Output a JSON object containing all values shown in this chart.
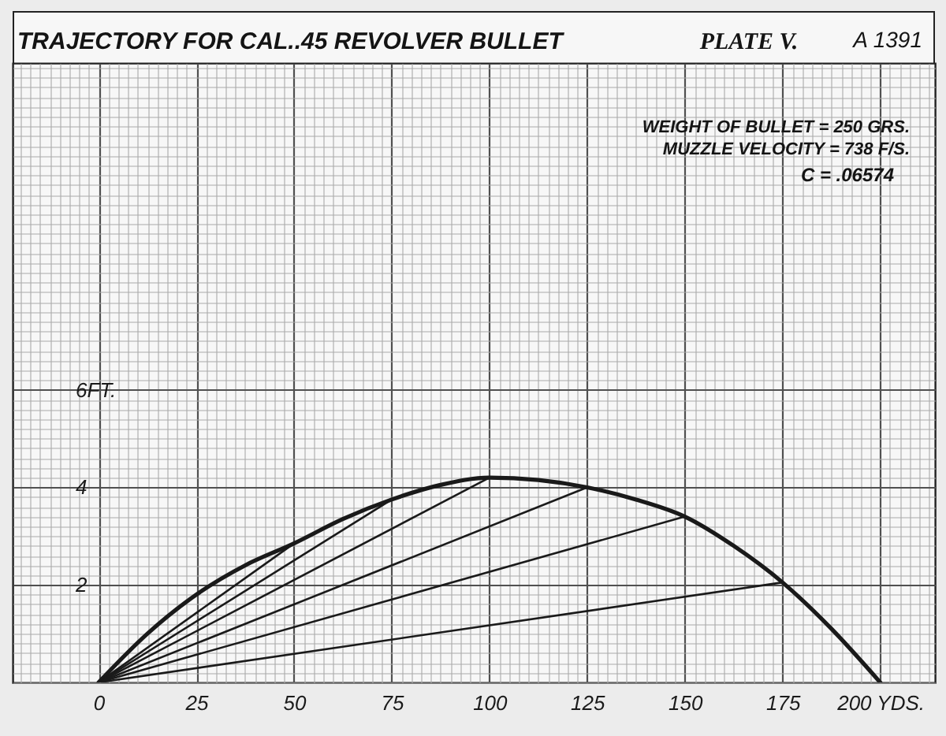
{
  "chart_data": {
    "type": "line",
    "title": "TRAJECTORY FOR CAL..45 REVOLVER BULLET",
    "annotations": [
      "PLATE V.",
      "A 1391",
      "WEIGHT OF BULLET = 250 GRS.",
      "MUZZLE VELOCITY = 738 F/S.",
      "C = .06574"
    ],
    "series": [
      {
        "color": "#1a1a1a",
        "x": [
          0,
          12.5,
          25,
          37.5,
          50,
          62.5,
          75,
          87.5,
          100,
          112.5,
          125,
          137.5,
          150,
          162.5,
          175,
          187.5,
          200
        ],
        "values": [
          0,
          1.0,
          1.8,
          2.4,
          2.85,
          3.35,
          3.75,
          4.05,
          4.2,
          4.15,
          4.0,
          3.75,
          3.4,
          2.8,
          2.05,
          1.1,
          0
        ]
      },
      {
        "color": "#1a1a1a",
        "x": [
          0,
          50
        ],
        "values": [
          0,
          2.85
        ]
      },
      {
        "color": "#1a1a1a",
        "x": [
          0,
          75
        ],
        "values": [
          0,
          3.75
        ]
      },
      {
        "color": "#1a1a1a",
        "x": [
          0,
          100
        ],
        "values": [
          0,
          4.2
        ]
      },
      {
        "color": "#1a1a1a",
        "x": [
          0,
          125
        ],
        "values": [
          0,
          4.0
        ]
      },
      {
        "color": "#1a1a1a",
        "x": [
          0,
          150
        ],
        "values": [
          0,
          3.4
        ]
      },
      {
        "color": "#1a1a1a",
        "x": [
          0,
          175
        ],
        "values": [
          0,
          2.05
        ]
      }
    ],
    "xlim": [
      -22,
      214
    ],
    "xticks": [
      {
        "value": -20,
        "label": null
      },
      {
        "value": -17.5,
        "label": null
      },
      {
        "value": -15,
        "label": null
      },
      {
        "value": -12.5,
        "label": null
      },
      {
        "value": -10,
        "label": null
      },
      {
        "value": -7.5,
        "label": null
      },
      {
        "value": -5,
        "label": null
      },
      {
        "value": -2.5,
        "label": null
      },
      0,
      {
        "value": 2.5,
        "label": null
      },
      {
        "value": 5,
        "label": null
      },
      {
        "value": 7.5,
        "label": null
      },
      {
        "value": 10,
        "label": null
      },
      {
        "value": 12.5,
        "label": null
      },
      {
        "value": 15,
        "label": null
      },
      {
        "value": 17.5,
        "label": null
      },
      {
        "value": 20,
        "label": null
      },
      {
        "value": 22.5,
        "label": null
      },
      25,
      {
        "value": 27.5,
        "label": null
      },
      {
        "value": 30,
        "label": null
      },
      {
        "value": 32.5,
        "label": null
      },
      {
        "value": 35,
        "label": null
      },
      {
        "value": 37.5,
        "label": null
      },
      {
        "value": 40,
        "label": null
      },
      {
        "value": 42.5,
        "label": null
      },
      {
        "value": 45,
        "label": null
      },
      {
        "value": 47.5,
        "label": null
      },
      50,
      {
        "value": 52.5,
        "label": null
      },
      {
        "value": 55,
        "label": null
      },
      {
        "value": 57.5,
        "label": null
      },
      {
        "value": 60,
        "label": null
      },
      {
        "value": 62.5,
        "label": null
      },
      {
        "value": 65,
        "label": null
      },
      {
        "value": 67.5,
        "label": null
      },
      {
        "value": 70,
        "label": null
      },
      {
        "value": 72.5,
        "label": null
      },
      75,
      {
        "value": 77.5,
        "label": null
      },
      {
        "value": 80,
        "label": null
      },
      {
        "value": 82.5,
        "label": null
      },
      {
        "value": 85,
        "label": null
      },
      {
        "value": 87.5,
        "label": null
      },
      {
        "value": 90,
        "label": null
      },
      {
        "value": 92.5,
        "label": null
      },
      {
        "value": 95,
        "label": null
      },
      {
        "value": 97.5,
        "label": null
      },
      100,
      {
        "value": 102.5,
        "label": null
      },
      {
        "value": 105,
        "label": null
      },
      {
        "value": 107.5,
        "label": null
      },
      {
        "value": 110,
        "label": null
      },
      {
        "value": 112.5,
        "label": null
      },
      {
        "value": 115,
        "label": null
      },
      {
        "value": 117.5,
        "label": null
      },
      {
        "value": 120,
        "label": null
      },
      {
        "value": 122.5,
        "label": null
      },
      125,
      {
        "value": 127.5,
        "label": null
      },
      {
        "value": 130,
        "label": null
      },
      {
        "value": 132.5,
        "label": null
      },
      {
        "value": 135,
        "label": null
      },
      {
        "value": 137.5,
        "label": null
      },
      {
        "value": 140,
        "label": null
      },
      {
        "value": 142.5,
        "label": null
      },
      {
        "value": 145,
        "label": null
      },
      {
        "value": 147.5,
        "label": null
      },
      150,
      {
        "value": 152.5,
        "label": null
      },
      {
        "value": 155,
        "label": null
      },
      {
        "value": 157.5,
        "label": null
      },
      {
        "value": 160,
        "label": null
      },
      {
        "value": 162.5,
        "label": null
      },
      {
        "value": 165,
        "label": null
      },
      {
        "value": 167.5,
        "label": null
      },
      {
        "value": 170,
        "label": null
      },
      {
        "value": 172.5,
        "label": null
      },
      175,
      {
        "value": 177.5,
        "label": null
      },
      {
        "value": 180,
        "label": null
      },
      {
        "value": 182.5,
        "label": null
      },
      {
        "value": 185,
        "label": null
      },
      {
        "value": 187.5,
        "label": null
      },
      {
        "value": 190,
        "label": null
      },
      {
        "value": 192.5,
        "label": null
      },
      {
        "value": 195,
        "label": null
      },
      {
        "value": 197.5,
        "label": null
      },
      {
        "value": 200,
        "label": "200 YDS."
      },
      {
        "value": 202.5,
        "label": null
      },
      {
        "value": 205,
        "label": null
      },
      {
        "value": 207.5,
        "label": null
      },
      {
        "value": 210,
        "label": null
      },
      {
        "value": 212.5,
        "label": null
      }
    ],
    "ylim": [
      0,
      12.7
    ],
    "yticks": [
      {
        "value": 0,
        "label": null
      },
      {
        "value": 0.2,
        "label": null
      },
      {
        "value": 0.4,
        "label": null
      },
      {
        "value": 0.6,
        "label": null
      },
      {
        "value": 0.8,
        "label": null
      },
      {
        "value": 1,
        "label": null
      },
      {
        "value": 1.2,
        "label": null
      },
      {
        "value": 1.4,
        "label": null
      },
      {
        "value": 1.6,
        "label": null
      },
      {
        "value": 1.8,
        "label": null
      },
      2,
      {
        "value": 2.2,
        "label": null
      },
      {
        "value": 2.4,
        "label": null
      },
      {
        "value": 2.6,
        "label": null
      },
      {
        "value": 2.8,
        "label": null
      },
      {
        "value": 3,
        "label": null
      },
      {
        "value": 3.2,
        "label": null
      },
      {
        "value": 3.4,
        "label": null
      },
      {
        "value": 3.6,
        "label": null
      },
      {
        "value": 3.8,
        "label": null
      },
      4,
      {
        "value": 4.2,
        "label": null
      },
      {
        "value": 4.4,
        "label": null
      },
      {
        "value": 4.6,
        "label": null
      },
      {
        "value": 4.8,
        "label": null
      },
      {
        "value": 5,
        "label": null
      },
      {
        "value": 5.2,
        "label": null
      },
      {
        "value": 5.4,
        "label": null
      },
      {
        "value": 5.6,
        "label": null
      },
      {
        "value": 5.8,
        "label": null
      },
      {
        "value": 6,
        "label": "6FT."
      },
      {
        "value": 6.2,
        "label": null
      },
      {
        "value": 6.4,
        "label": null
      },
      {
        "value": 6.6,
        "label": null
      },
      {
        "value": 6.8,
        "label": null
      },
      {
        "value": 7,
        "label": null
      },
      {
        "value": 7.2,
        "label": null
      },
      {
        "value": 7.4,
        "label": null
      },
      {
        "value": 7.6,
        "label": null
      },
      {
        "value": 7.8,
        "label": null
      },
      {
        "value": 8,
        "label": null
      },
      {
        "value": 8.2,
        "label": null
      },
      {
        "value": 8.4,
        "label": null
      },
      {
        "value": 8.6,
        "label": null
      },
      {
        "value": 8.8,
        "label": null
      },
      {
        "value": 9,
        "label": null
      },
      {
        "value": 9.2,
        "label": null
      },
      {
        "value": 9.4,
        "label": null
      },
      {
        "value": 9.6,
        "label": null
      },
      {
        "value": 9.8,
        "label": null
      },
      {
        "value": 10,
        "label": null
      },
      {
        "value": 10.2,
        "label": null
      },
      {
        "value": 10.4,
        "label": null
      },
      {
        "value": 10.6,
        "label": null
      },
      {
        "value": 10.8,
        "label": null
      },
      {
        "value": 11,
        "label": null
      },
      {
        "value": 11.2,
        "label": null
      },
      {
        "value": 11.4,
        "label": null
      },
      {
        "value": 11.6,
        "label": null
      },
      {
        "value": 11.8,
        "label": null
      },
      {
        "value": 12,
        "label": null
      },
      {
        "value": 12.2,
        "label": null
      },
      {
        "value": 12.4,
        "label": null
      },
      {
        "value": 12.6,
        "label": null
      }
    ],
    "grid": true
  }
}
